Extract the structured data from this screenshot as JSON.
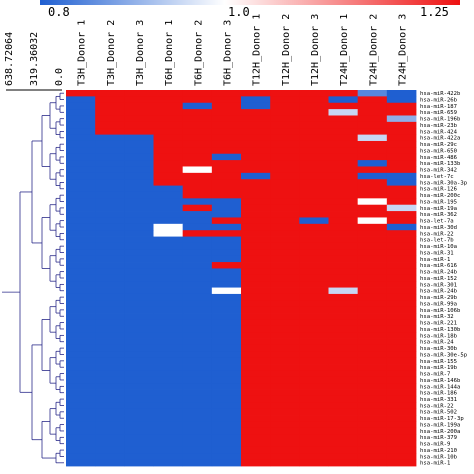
{
  "chart_data": {
    "type": "heatmap",
    "title": "",
    "colorbar": {
      "ticks": [
        "0.8",
        "1.0",
        "1.25"
      ],
      "range": [
        0.8,
        1.25
      ],
      "low_color": "#1f5fd1",
      "mid_color": "#ffffff",
      "high_color": "#ee1111"
    },
    "dendrogram_axis": {
      "ticks": [
        "638.72064",
        "319.36032",
        "0.0"
      ]
    },
    "columns": [
      "T3H_Donor 1",
      "T3H_Donor 2",
      "T3H_Donor 3",
      "T6H_Donor 1",
      "T6H_Donor 2",
      "T6H_Donor 3",
      "T12H_Donor 1",
      "T12H_Donor 2",
      "T12H_Donor 3",
      "T24H_Donor 1",
      "T24H_Donor 2",
      "T24H_Donor 3"
    ],
    "rows": [
      "hsa-miR-422b",
      "hsa-miR-26b",
      "hsa-miR-187",
      "hsa-miR-659",
      "hsa-miR-196b",
      "hsa-miR-23b",
      "hsa-miR-424",
      "hsa-miR-422a",
      "hsa-miR-29c",
      "hsa-miR-650",
      "hsa-miR-486",
      "hsa-miR-133b",
      "hsa-miR-342",
      "hsa-let-7c",
      "hsa-miR-30a-3p",
      "hsa-miR-126",
      "hsa-miR-200c",
      "hsa-miR-195",
      "hsa-miR-19a",
      "hsa-miR-362",
      "hsa-let-7a",
      "hsa-miR-30d",
      "hsa-miR-22",
      "hsa-let-7b",
      "hsa-miR-10a",
      "hsa-miR-31",
      "hsa-miR-1",
      "hsa-miR-616",
      "hsa-miR-24b",
      "hsa-miR-152",
      "hsa-miR-301",
      "hsa-miR-24b",
      "hsa-miR-29b",
      "hsa-miR-99a",
      "hsa-miR-106b",
      "hsa-miR-32",
      "hsa-miR-221",
      "hsa-miR-130b",
      "hsa-miR-18b",
      "hsa-miR-24",
      "hsa-miR-30b",
      "hsa-miR-30e-5p",
      "hsa-miR-155",
      "hsa-miR-19b",
      "hsa-miR-7",
      "hsa-miR-146b",
      "hsa-miR-144a",
      "hsa-miR-186",
      "hsa-miR-331",
      "hsa-miR-22",
      "hsa-miR-502",
      "hsa-miR-17-3p",
      "hsa-miR-199a",
      "hsa-miR-200a",
      "hsa-miR-379",
      "hsa-miR-9",
      "hsa-miR-210",
      "hsa-miR-10b",
      "hsa-miR-1"
    ],
    "values": [
      [
        1.25,
        1.25,
        1.25,
        1.25,
        1.25,
        1.25,
        1.25,
        1.25,
        1.25,
        1.25,
        0.85,
        0.8
      ],
      [
        0.8,
        1.25,
        1.25,
        1.25,
        1.25,
        1.25,
        0.8,
        1.25,
        1.25,
        0.8,
        1.25,
        0.8
      ],
      [
        0.8,
        1.25,
        1.25,
        1.25,
        0.8,
        1.25,
        0.8,
        1.25,
        1.25,
        1.25,
        1.25,
        1.25
      ],
      [
        0.8,
        1.25,
        1.25,
        1.25,
        1.25,
        1.25,
        1.25,
        1.25,
        1.25,
        0.95,
        1.25,
        1.25
      ],
      [
        0.8,
        1.25,
        1.25,
        1.25,
        1.25,
        1.25,
        1.25,
        1.25,
        1.25,
        1.25,
        1.25,
        0.9
      ],
      [
        0.8,
        1.25,
        1.25,
        1.25,
        1.25,
        1.25,
        1.25,
        1.25,
        1.25,
        1.25,
        1.25,
        1.25
      ],
      [
        0.8,
        1.25,
        1.25,
        1.25,
        1.25,
        1.25,
        1.25,
        1.25,
        1.25,
        1.25,
        1.25,
        1.25
      ],
      [
        0.8,
        0.8,
        0.8,
        1.25,
        1.25,
        1.25,
        1.25,
        1.25,
        1.25,
        1.25,
        0.95,
        1.25
      ],
      [
        0.8,
        0.8,
        0.8,
        1.25,
        1.25,
        1.25,
        1.25,
        1.25,
        1.25,
        1.25,
        1.25,
        1.25
      ],
      [
        0.8,
        0.8,
        0.8,
        1.25,
        1.25,
        1.25,
        1.25,
        1.25,
        1.25,
        1.25,
        1.25,
        1.25
      ],
      [
        0.8,
        0.8,
        0.8,
        1.25,
        1.25,
        0.8,
        1.25,
        1.25,
        1.25,
        1.25,
        1.25,
        1.25
      ],
      [
        0.8,
        0.8,
        0.8,
        1.25,
        1.25,
        1.25,
        1.25,
        1.25,
        1.25,
        1.25,
        0.8,
        1.25
      ],
      [
        0.8,
        0.8,
        0.8,
        1.25,
        1.0,
        1.25,
        1.25,
        1.25,
        1.25,
        1.25,
        1.25,
        1.25
      ],
      [
        0.8,
        0.8,
        0.8,
        1.25,
        1.25,
        1.25,
        0.8,
        1.25,
        1.25,
        1.25,
        0.8,
        0.8
      ],
      [
        0.8,
        0.8,
        0.8,
        1.25,
        1.25,
        1.25,
        1.25,
        1.25,
        1.25,
        1.25,
        1.25,
        0.8
      ],
      [
        0.8,
        0.8,
        0.8,
        0.8,
        1.25,
        1.25,
        1.25,
        1.25,
        1.25,
        1.25,
        1.25,
        1.25
      ],
      [
        0.8,
        0.8,
        0.8,
        0.8,
        1.25,
        1.25,
        1.25,
        1.25,
        1.25,
        1.25,
        1.25,
        1.25
      ],
      [
        0.8,
        0.8,
        0.8,
        0.8,
        0.8,
        0.8,
        1.25,
        1.25,
        1.25,
        1.25,
        1.0,
        1.25
      ],
      [
        0.8,
        0.8,
        0.8,
        0.8,
        1.25,
        0.8,
        1.25,
        1.25,
        1.25,
        1.25,
        1.25,
        0.95
      ],
      [
        0.8,
        0.8,
        0.8,
        0.8,
        0.8,
        0.8,
        1.25,
        1.25,
        1.25,
        1.25,
        1.25,
        1.25
      ],
      [
        0.8,
        0.8,
        0.8,
        0.8,
        0.8,
        1.25,
        1.25,
        1.25,
        0.8,
        1.25,
        1.0,
        1.25
      ],
      [
        0.8,
        0.8,
        0.8,
        1.0,
        0.8,
        0.8,
        1.25,
        1.25,
        1.25,
        1.25,
        1.25,
        0.8
      ],
      [
        0.8,
        0.8,
        0.8,
        1.0,
        1.25,
        1.25,
        1.25,
        1.25,
        1.25,
        1.25,
        1.25,
        1.25
      ],
      [
        0.8,
        0.8,
        0.8,
        0.8,
        0.8,
        0.8,
        1.25,
        1.25,
        1.25,
        1.25,
        1.25,
        1.25
      ],
      [
        0.8,
        0.8,
        0.8,
        0.8,
        0.8,
        0.8,
        1.25,
        1.25,
        1.25,
        1.25,
        1.25,
        1.25
      ],
      [
        0.8,
        0.8,
        0.8,
        0.8,
        0.8,
        0.8,
        1.25,
        1.25,
        1.25,
        1.25,
        1.25,
        1.25
      ],
      [
        0.8,
        0.8,
        0.8,
        0.8,
        0.8,
        0.8,
        1.25,
        1.25,
        1.25,
        1.25,
        1.25,
        1.25
      ],
      [
        0.8,
        0.8,
        0.8,
        0.8,
        0.8,
        1.25,
        1.25,
        1.25,
        1.25,
        1.25,
        1.25,
        1.25
      ],
      [
        0.8,
        0.8,
        0.8,
        0.8,
        0.8,
        0.8,
        1.25,
        1.25,
        1.25,
        1.25,
        1.25,
        1.25
      ],
      [
        0.8,
        0.8,
        0.8,
        0.8,
        0.8,
        0.8,
        1.25,
        1.25,
        1.25,
        1.25,
        1.25,
        1.25
      ],
      [
        0.8,
        0.8,
        0.8,
        0.8,
        0.8,
        0.8,
        1.25,
        1.25,
        1.25,
        1.25,
        1.25,
        1.25
      ],
      [
        0.8,
        0.8,
        0.8,
        0.8,
        0.8,
        1.0,
        1.25,
        1.25,
        1.25,
        0.95,
        1.25,
        1.25
      ],
      [
        0.8,
        0.8,
        0.8,
        0.8,
        0.8,
        0.8,
        1.25,
        1.25,
        1.25,
        1.25,
        1.25,
        1.25
      ],
      [
        0.8,
        0.8,
        0.8,
        0.8,
        0.8,
        0.8,
        1.25,
        1.25,
        1.25,
        1.25,
        1.25,
        1.25
      ],
      [
        0.8,
        0.8,
        0.8,
        0.8,
        0.8,
        0.8,
        1.25,
        1.25,
        1.25,
        1.25,
        1.25,
        1.25
      ],
      [
        0.8,
        0.8,
        0.8,
        0.8,
        0.8,
        0.8,
        1.25,
        1.25,
        1.25,
        1.25,
        1.25,
        1.25
      ],
      [
        0.8,
        0.8,
        0.8,
        0.8,
        0.8,
        0.8,
        1.25,
        1.25,
        1.25,
        1.25,
        1.25,
        1.25
      ],
      [
        0.8,
        0.8,
        0.8,
        0.8,
        0.8,
        0.8,
        1.25,
        1.25,
        1.25,
        1.25,
        1.25,
        1.25
      ],
      [
        0.8,
        0.8,
        0.8,
        0.8,
        0.8,
        0.8,
        1.25,
        1.25,
        1.25,
        1.25,
        1.25,
        1.25
      ],
      [
        0.8,
        0.8,
        0.8,
        0.8,
        0.8,
        0.8,
        1.25,
        1.25,
        1.25,
        1.25,
        1.25,
        1.25
      ],
      [
        0.8,
        0.8,
        0.8,
        0.8,
        0.8,
        0.8,
        1.25,
        1.25,
        1.25,
        1.25,
        1.25,
        1.25
      ],
      [
        0.8,
        0.8,
        0.8,
        0.8,
        0.8,
        0.8,
        1.25,
        1.25,
        1.25,
        1.25,
        1.25,
        1.25
      ],
      [
        0.8,
        0.8,
        0.8,
        0.8,
        0.8,
        0.8,
        1.25,
        1.25,
        1.25,
        1.25,
        1.25,
        1.25
      ],
      [
        0.8,
        0.8,
        0.8,
        0.8,
        0.8,
        0.8,
        1.25,
        1.25,
        1.25,
        1.25,
        1.25,
        1.25
      ],
      [
        0.8,
        0.8,
        0.8,
        0.8,
        0.8,
        0.8,
        1.25,
        1.25,
        1.25,
        1.25,
        1.25,
        1.25
      ],
      [
        0.8,
        0.8,
        0.8,
        0.8,
        0.8,
        0.8,
        1.25,
        1.25,
        1.25,
        1.25,
        1.25,
        1.25
      ],
      [
        0.8,
        0.8,
        0.8,
        0.8,
        0.8,
        0.8,
        1.25,
        1.25,
        1.25,
        1.25,
        1.25,
        1.25
      ],
      [
        0.8,
        0.8,
        0.8,
        0.8,
        0.8,
        0.8,
        1.25,
        1.25,
        1.25,
        1.25,
        1.25,
        1.25
      ],
      [
        0.8,
        0.8,
        0.8,
        0.8,
        0.8,
        0.8,
        1.25,
        1.25,
        1.25,
        1.25,
        1.25,
        1.25
      ],
      [
        0.8,
        0.8,
        0.8,
        0.8,
        0.8,
        0.8,
        1.25,
        1.25,
        1.25,
        1.25,
        1.25,
        1.25
      ],
      [
        0.8,
        0.8,
        0.8,
        0.8,
        0.8,
        0.8,
        1.25,
        1.25,
        1.25,
        1.25,
        1.25,
        1.25
      ],
      [
        0.8,
        0.8,
        0.8,
        0.8,
        0.8,
        0.8,
        1.25,
        1.25,
        1.25,
        1.25,
        1.25,
        1.25
      ],
      [
        0.8,
        0.8,
        0.8,
        0.8,
        0.8,
        0.8,
        1.25,
        1.25,
        1.25,
        1.25,
        1.25,
        1.25
      ],
      [
        0.8,
        0.8,
        0.8,
        0.8,
        0.8,
        0.8,
        1.25,
        1.25,
        1.25,
        1.25,
        1.25,
        1.25
      ],
      [
        0.8,
        0.8,
        0.8,
        0.8,
        0.8,
        0.8,
        1.25,
        1.25,
        1.25,
        1.25,
        1.25,
        1.25
      ],
      [
        0.8,
        0.8,
        0.8,
        0.8,
        0.8,
        0.8,
        1.25,
        1.25,
        1.25,
        1.25,
        1.25,
        1.25
      ],
      [
        0.8,
        0.8,
        0.8,
        0.8,
        0.8,
        0.8,
        1.25,
        1.25,
        1.25,
        1.25,
        1.25,
        1.25
      ],
      [
        0.8,
        0.8,
        0.8,
        0.8,
        0.8,
        0.8,
        1.25,
        1.25,
        1.25,
        1.25,
        1.25,
        1.25
      ],
      [
        0.8,
        0.8,
        0.8,
        0.8,
        0.8,
        0.8,
        1.25,
        1.25,
        1.25,
        1.25,
        1.25,
        1.25
      ]
    ]
  }
}
